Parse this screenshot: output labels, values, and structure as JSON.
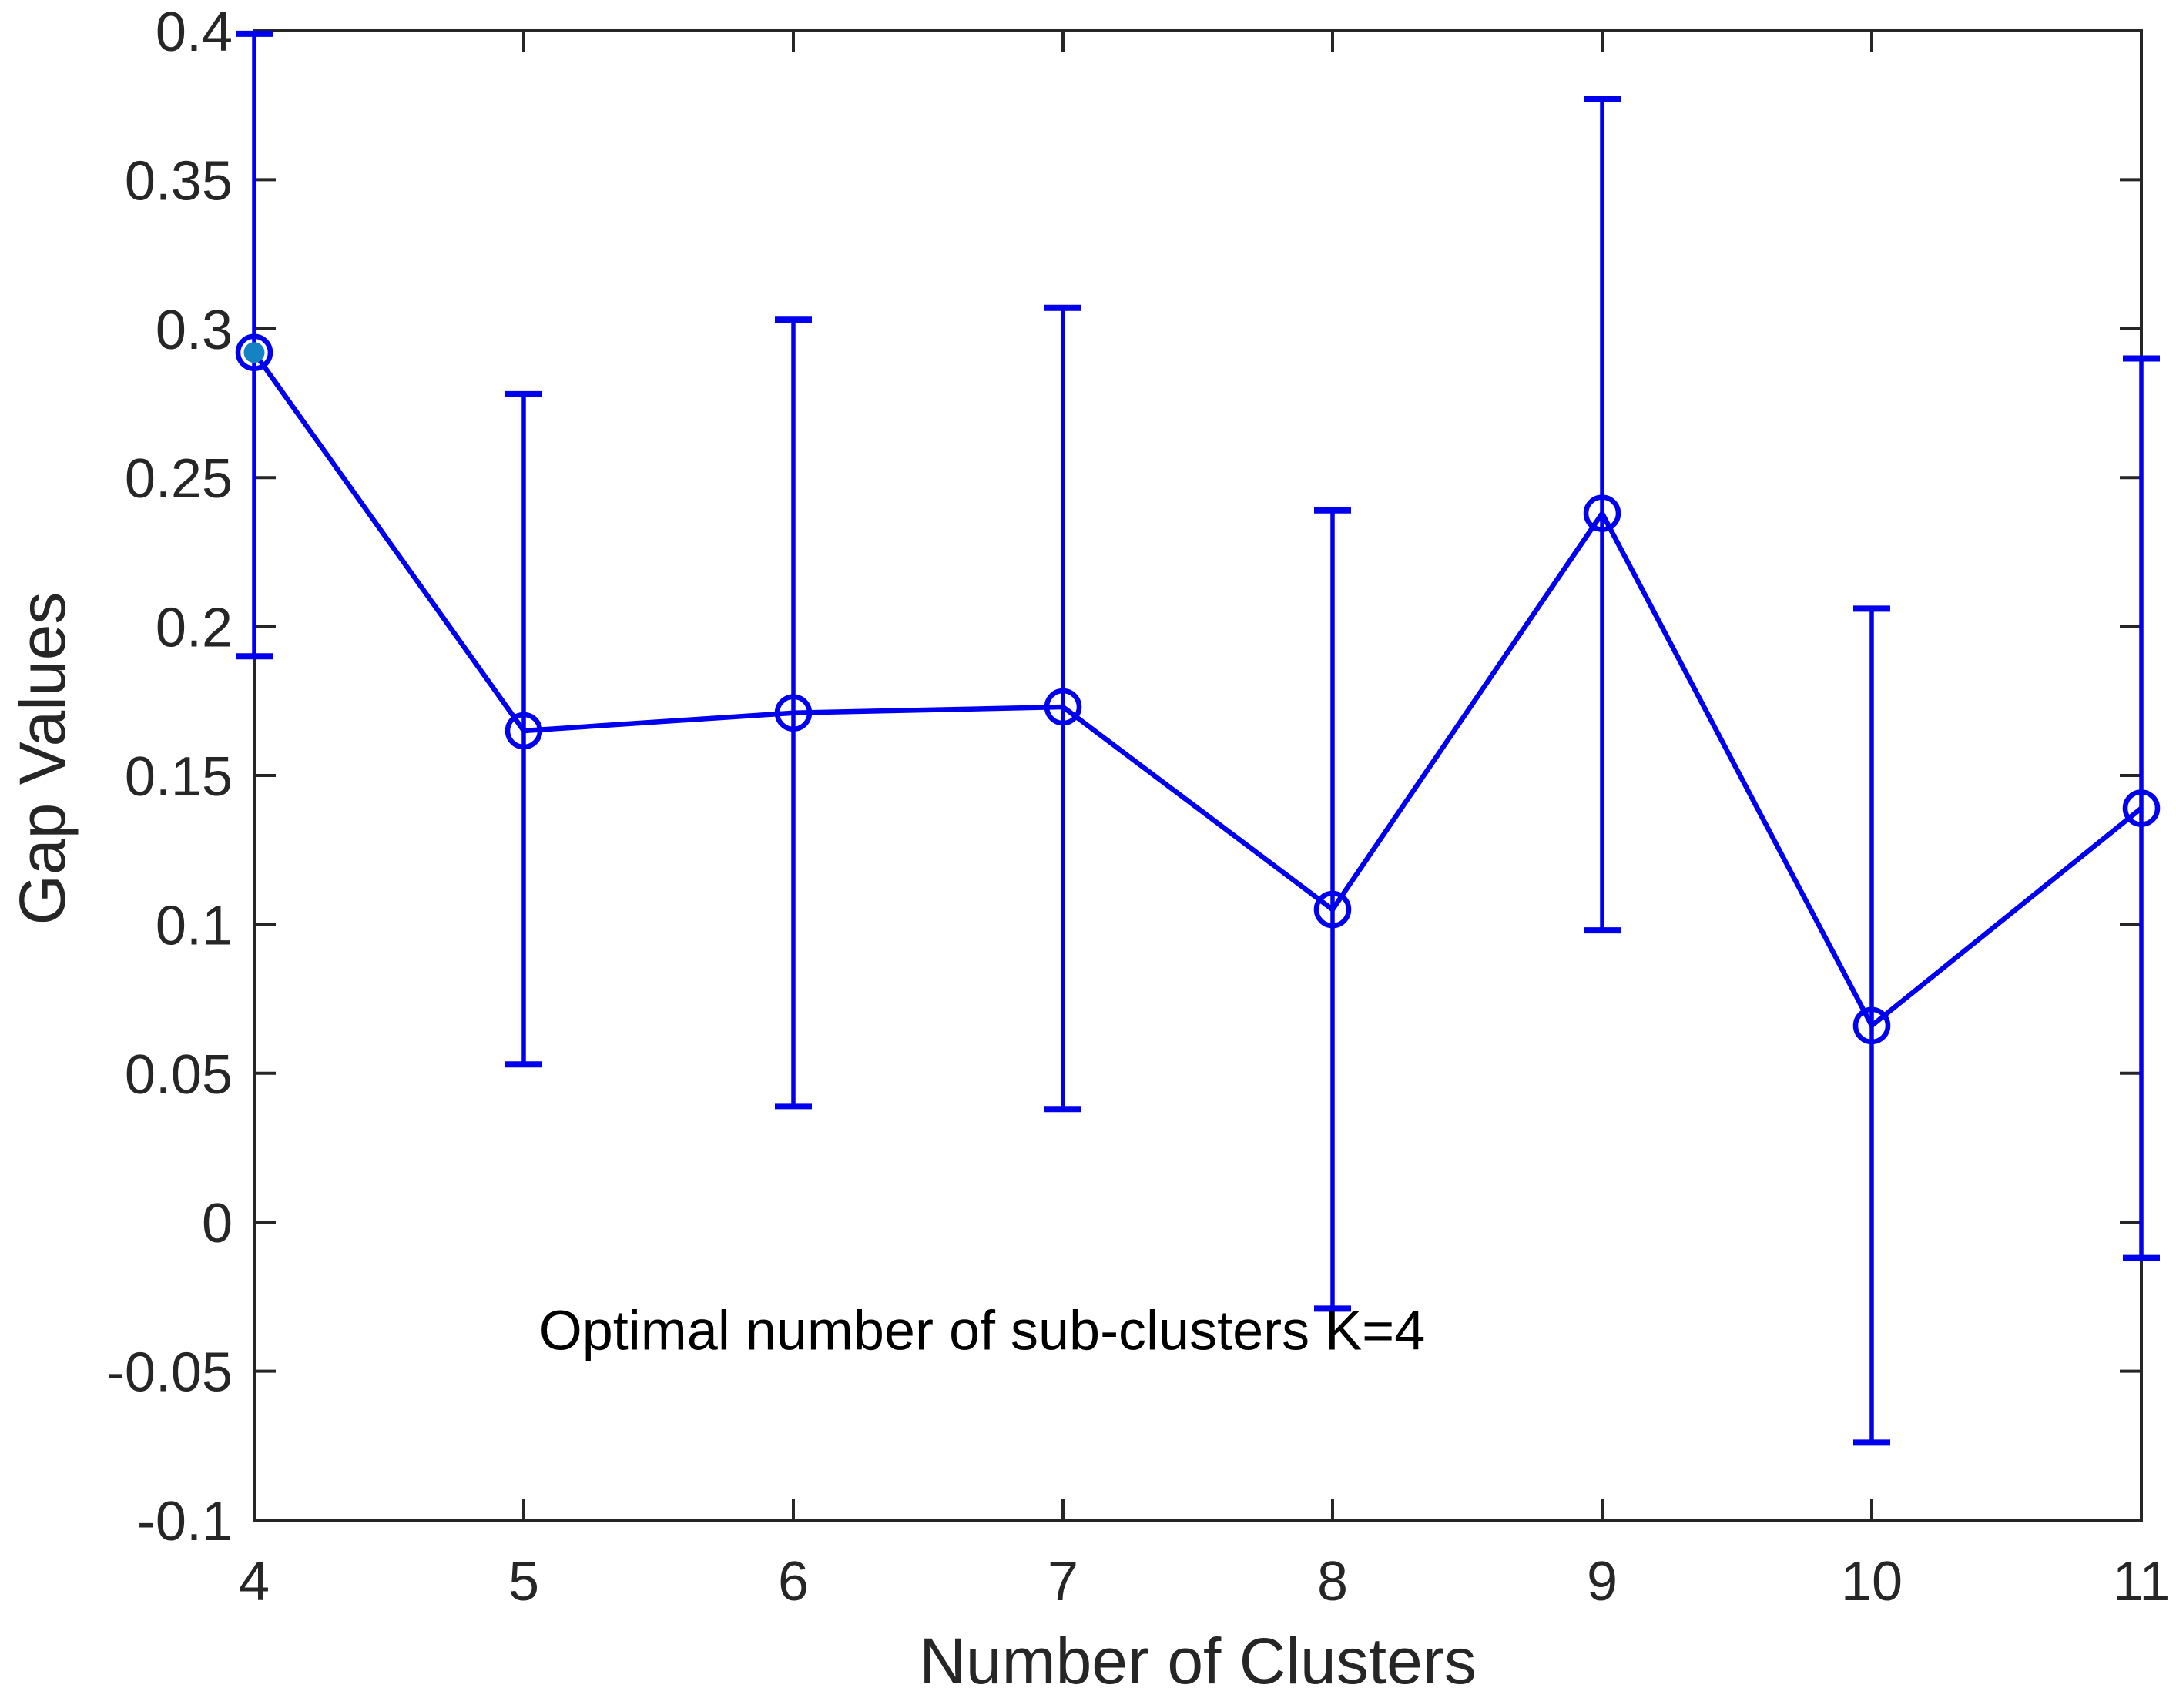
{
  "figure": {
    "background": "#ffffff"
  },
  "chart_data": {
    "type": "line",
    "subtype": "errorbar",
    "title": "",
    "xlabel": "Number of Clusters",
    "ylabel": "Gap Values",
    "annotation": {
      "text": "Optimal number of sub-clusters K=4",
      "x": 6.7,
      "y": -0.036
    },
    "xlim": [
      4,
      11
    ],
    "ylim": [
      -0.1,
      0.4
    ],
    "grid": false,
    "legend_position": "none",
    "xticks": [
      4,
      5,
      6,
      7,
      8,
      9,
      10,
      11
    ],
    "xtick_labels": [
      "4",
      "5",
      "6",
      "7",
      "8",
      "9",
      "10",
      "11"
    ],
    "ytick_values": [
      0.4,
      0.35,
      0.3,
      0.25,
      0.2,
      0.15,
      0.1,
      0.05,
      0,
      -0.05,
      -0.1
    ],
    "ytick_labels": [
      "0.4",
      "0.35",
      "0.3",
      "0.25",
      "0.2",
      "0.15",
      "0.1",
      "0.05",
      "0",
      "-0.05",
      "-0.1"
    ],
    "series": [
      {
        "name": "gap-values",
        "marker": "open-circle",
        "x": [
          4,
          5,
          6,
          7,
          8,
          9,
          10,
          11
        ],
        "y": [
          0.292,
          0.165,
          0.171,
          0.173,
          0.105,
          0.238,
          0.066,
          0.139
        ],
        "err_low_abs": [
          0.19,
          0.053,
          0.039,
          0.038,
          -0.029,
          0.098,
          -0.074,
          -0.012
        ],
        "err_high_abs": [
          0.399,
          0.278,
          0.303,
          0.307,
          0.239,
          0.377,
          0.206,
          0.29
        ],
        "optimal_index": 0
      }
    ],
    "colors": {
      "line": "#0000ee",
      "marker_fill_optimal": "#1482c3",
      "axis": "#262626",
      "text": "#262626"
    }
  }
}
